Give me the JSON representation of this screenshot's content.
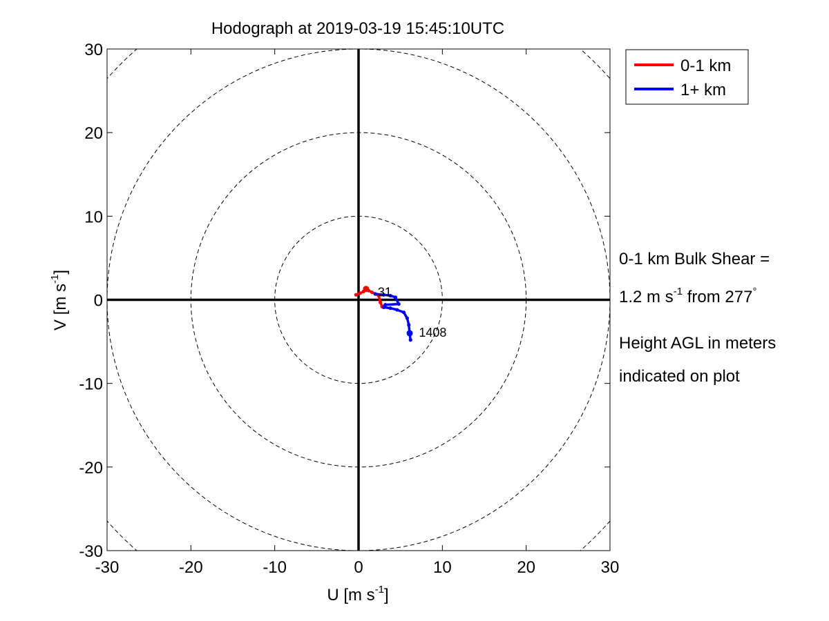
{
  "chart_data": {
    "type": "line",
    "title": "Hodograph at 2019-03-19 15:45:10UTC",
    "xlabel": "U [m s",
    "xlabel_sup": "-1",
    "xlabel_end": "]",
    "ylabel": "V [m s",
    "ylabel_sup": "-1",
    "ylabel_end": "]",
    "xlim": [
      -30,
      30
    ],
    "ylim": [
      -30,
      30
    ],
    "xticks": [
      -30,
      -20,
      -10,
      0,
      10,
      20,
      30
    ],
    "yticks": [
      -30,
      -20,
      -10,
      0,
      10,
      20,
      30
    ],
    "range_rings": [
      10,
      20,
      30,
      40
    ],
    "legend_position": "outside-top-right",
    "series": [
      {
        "name": "0-1 km",
        "color": "#ff0000",
        "points": [
          [
            -0.3,
            0.6
          ],
          [
            0.2,
            0.8
          ],
          [
            0.6,
            1.0
          ],
          [
            0.9,
            1.3
          ],
          [
            1.2,
            1.1
          ],
          [
            1.6,
            0.9
          ],
          [
            2.0,
            0.7
          ],
          [
            2.4,
            0.5
          ],
          [
            2.6,
            -0.3
          ],
          [
            2.8,
            -0.8
          ],
          [
            3.2,
            -0.6
          ]
        ]
      },
      {
        "name": "1+ km",
        "color": "#0000ff",
        "points": [
          [
            2.0,
            0.7
          ],
          [
            3.0,
            0.6
          ],
          [
            3.8,
            0.5
          ],
          [
            4.4,
            0.3
          ],
          [
            4.8,
            -0.5
          ],
          [
            3.2,
            -0.6
          ],
          [
            3.0,
            -0.9
          ],
          [
            3.8,
            -1.0
          ],
          [
            4.6,
            -1.2
          ],
          [
            5.4,
            -1.5
          ],
          [
            5.8,
            -2.2
          ],
          [
            6.0,
            -3.0
          ],
          [
            6.1,
            -4.0
          ],
          [
            6.2,
            -4.8
          ]
        ]
      }
    ],
    "height_labels": [
      {
        "text": "31",
        "u": 2.3,
        "v": 0.9
      },
      {
        "text": "1408",
        "u": 7.2,
        "v": -3.9
      }
    ],
    "height_markers": [
      [
        0.9,
        1.3
      ],
      [
        6.1,
        -4.0
      ]
    ]
  },
  "annotations": {
    "shear_line1": "0-1 km Bulk Shear =",
    "shear_line2_a": "1.2 m s",
    "shear_line2_sup": "-1",
    "shear_line2_b": " from 277",
    "shear_line2_deg": "°",
    "agl_line1": "Height AGL in meters",
    "agl_line2": "indicated on plot"
  }
}
